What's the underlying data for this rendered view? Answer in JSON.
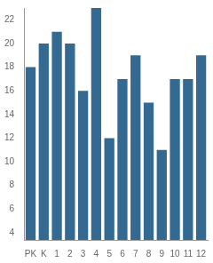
{
  "chart_data": {
    "type": "bar",
    "categories": [
      "PK",
      "K",
      "1",
      "2",
      "3",
      "4",
      "5",
      "6",
      "7",
      "8",
      "9",
      "10",
      "11",
      "12"
    ],
    "values": [
      18,
      20,
      21,
      20,
      16,
      23,
      12,
      17,
      19,
      15,
      11,
      17,
      17,
      19
    ],
    "color": "#346a91",
    "ylim": [
      3.4,
      23
    ],
    "yticks": [
      4,
      6,
      8,
      10,
      12,
      14,
      16,
      18,
      20,
      22
    ],
    "grid": false
  }
}
